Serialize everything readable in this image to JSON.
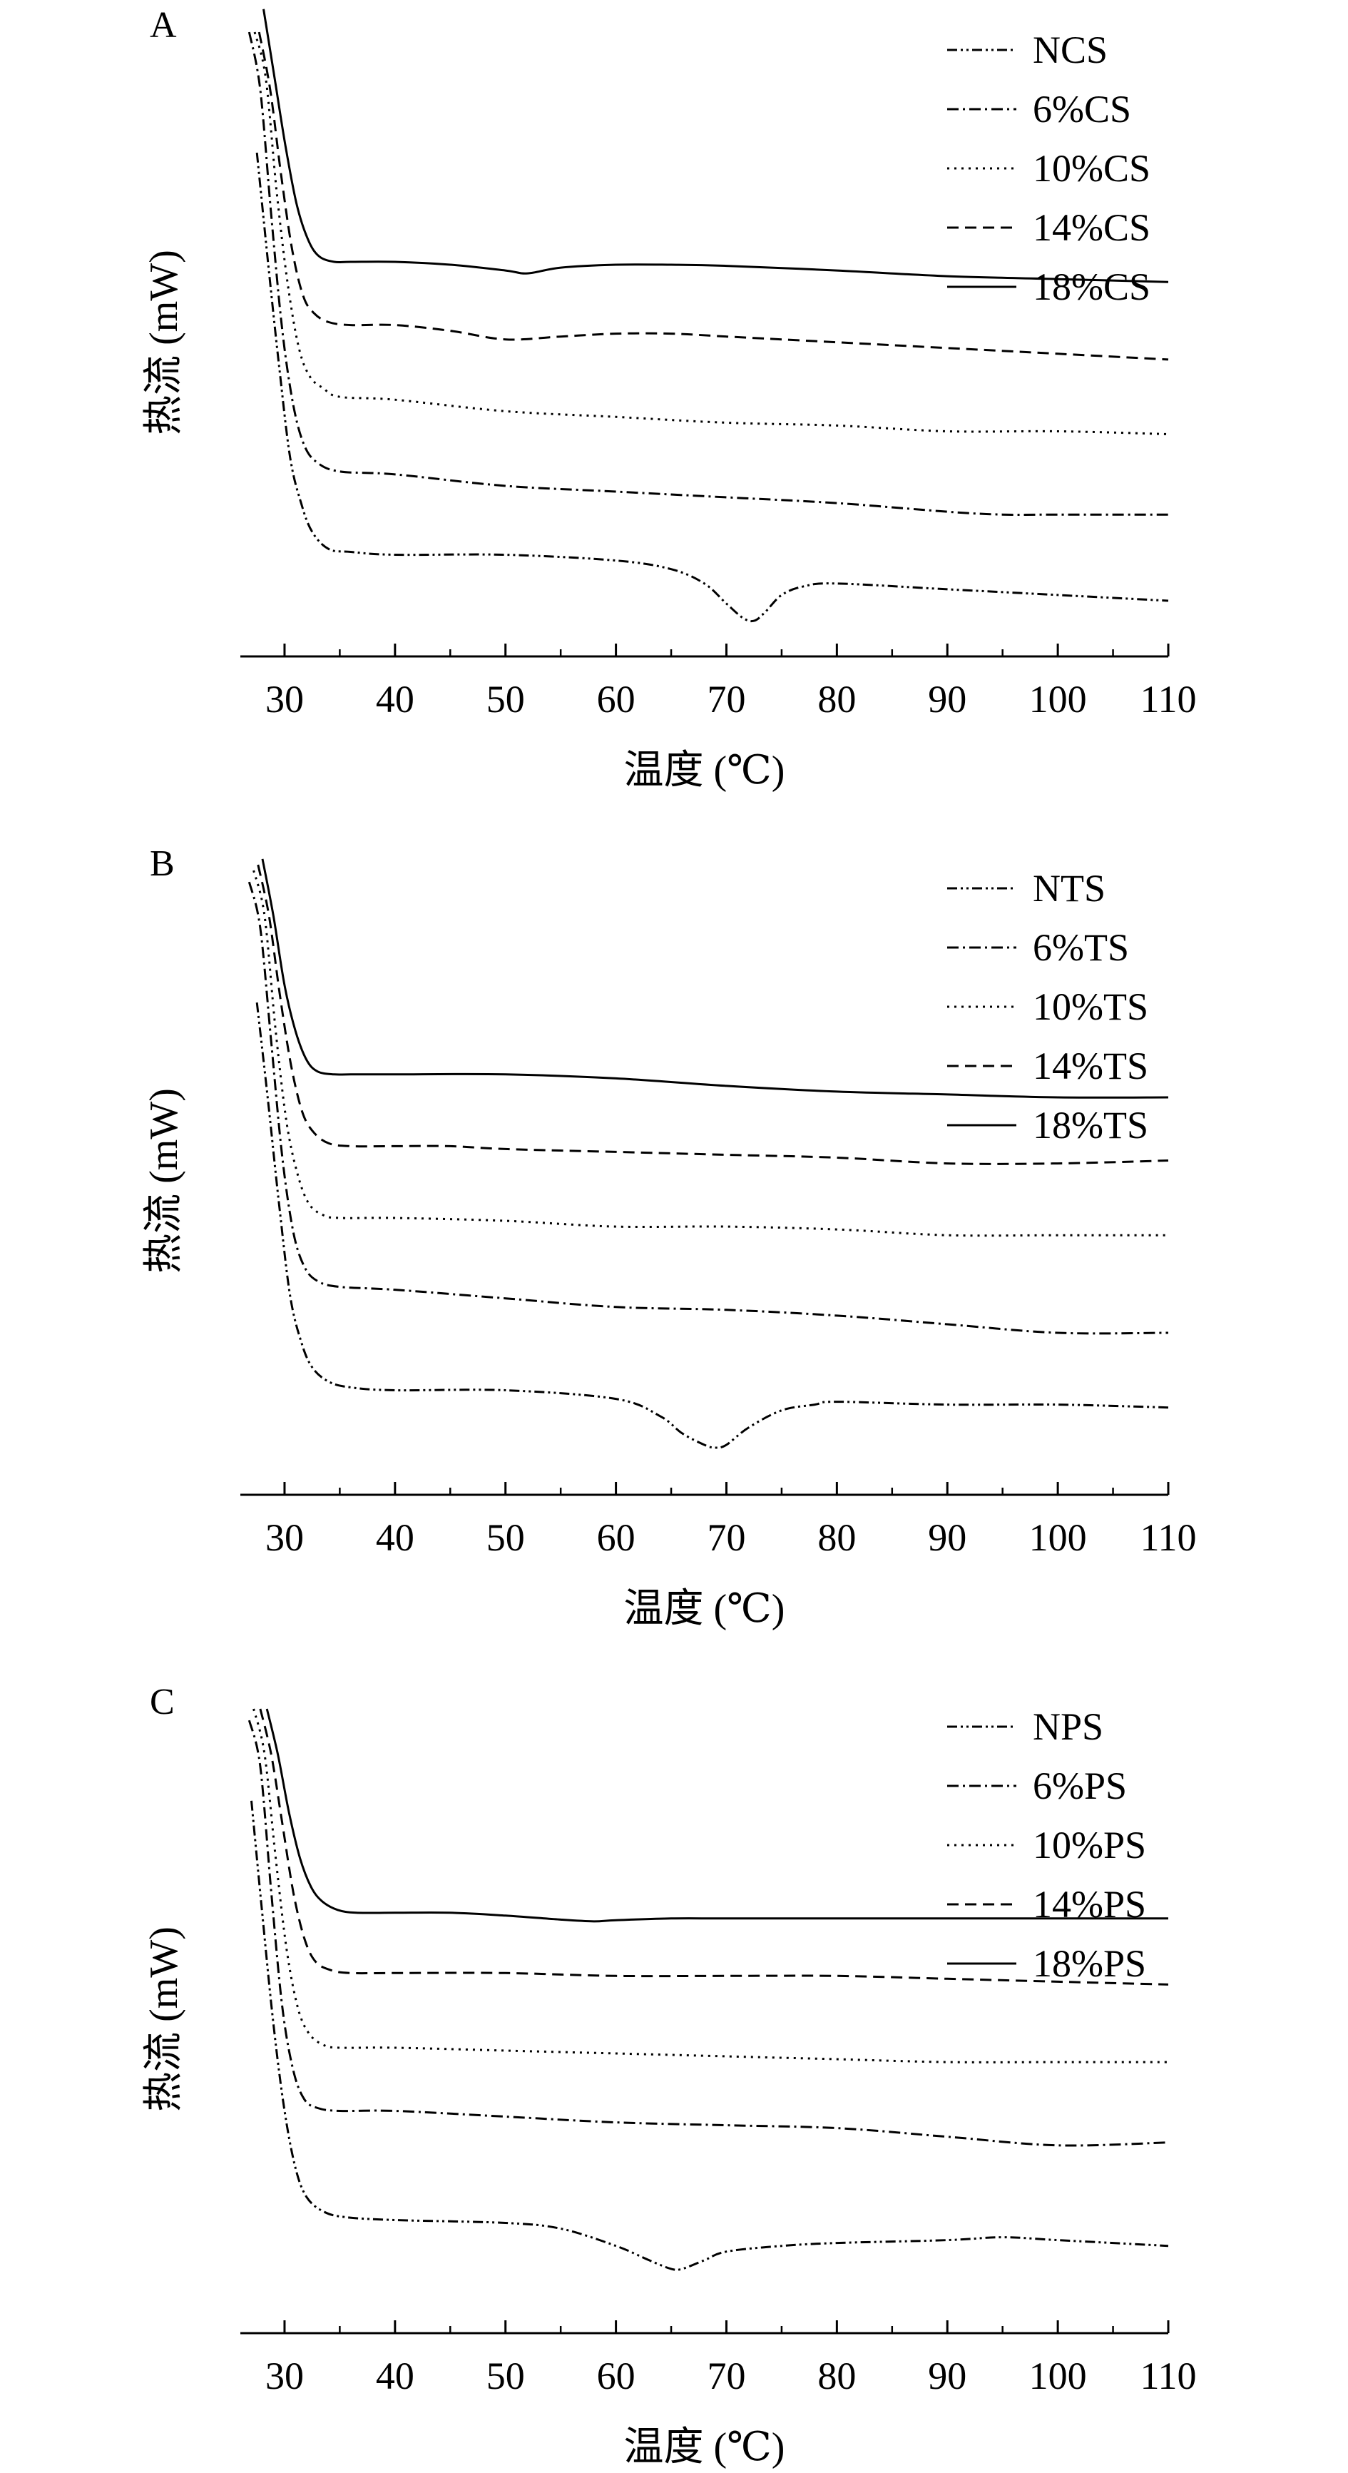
{
  "figure": {
    "panels": [
      {
        "label": "A",
        "xlabel": "温度 (℃)",
        "ylabel": "热流 (mW)",
        "xticks": [
          "30",
          "40",
          "50",
          "60",
          "70",
          "80",
          "90",
          "100",
          "110"
        ],
        "legend": [
          "NCS",
          "6%CS",
          "10%CS",
          "14%CS",
          "18%CS"
        ]
      },
      {
        "label": "B",
        "xlabel": "温度 (℃)",
        "ylabel": "热流 (mW)",
        "xticks": [
          "30",
          "40",
          "50",
          "60",
          "70",
          "80",
          "90",
          "100",
          "110"
        ],
        "legend": [
          "NTS",
          "6%TS",
          "10%TS",
          "14%TS",
          "18%TS"
        ]
      },
      {
        "label": "C",
        "xlabel": "温度 (℃)",
        "ylabel": "热流 (mW)",
        "xticks": [
          "30",
          "40",
          "50",
          "60",
          "70",
          "80",
          "90",
          "100",
          "110"
        ],
        "legend": [
          "NPS",
          "6%PS",
          "10%PS",
          "14%PS",
          "18%PS"
        ]
      }
    ]
  },
  "chart_data": [
    {
      "type": "line",
      "panel": "A",
      "xlabel": "温度 (℃)",
      "ylabel": "热流 (mW)",
      "xlim": [
        26,
        110
      ],
      "ylim": [
        0,
        100
      ],
      "xticks": [
        30,
        40,
        50,
        60,
        70,
        80,
        90,
        100,
        110
      ],
      "legend_position": "top-right",
      "grid": false,
      "series": [
        {
          "name": "NCS",
          "style": "dash-dot-dot",
          "x": [
            27.5,
            28.5,
            29.5,
            30.5,
            31.5,
            32.5,
            34,
            36,
            40,
            50,
            60,
            65,
            68,
            70,
            71.5,
            72.5,
            73.5,
            75,
            77,
            80,
            90,
            100,
            110
          ],
          "y": [
            79,
            60,
            42,
            26,
            18,
            13,
            10,
            9.5,
            9,
            9,
            8,
            6.5,
            4,
            0.5,
            -2,
            -2.5,
            -1,
            2,
            3.5,
            4,
            3,
            2,
            1
          ]
        },
        {
          "name": "6%CS",
          "style": "dash-dot",
          "x": [
            26.8,
            27.8,
            28.8,
            29.8,
            30.8,
            31.8,
            33,
            35,
            40,
            50,
            60,
            70,
            80,
            90,
            95,
            100,
            110
          ],
          "y": [
            100,
            90,
            68,
            48,
            35,
            28,
            25,
            23.5,
            23,
            21,
            20,
            19,
            18,
            16.5,
            16,
            16,
            16
          ]
        },
        {
          "name": "10%CS",
          "style": "dotted",
          "x": [
            27.3,
            28.3,
            29.3,
            30.3,
            31.3,
            32.3,
            33.5,
            35,
            40,
            50,
            60,
            70,
            80,
            90,
            100,
            110
          ],
          "y": [
            100,
            92,
            72,
            56,
            45,
            40,
            38,
            36.5,
            36,
            34,
            33,
            32,
            31.5,
            30.5,
            30.5,
            30
          ]
        },
        {
          "name": "14%CS",
          "style": "dashed",
          "x": [
            27.7,
            28.7,
            29.7,
            30.7,
            31.7,
            32.7,
            34,
            36,
            40,
            45,
            50,
            55,
            60,
            65,
            70,
            80,
            90,
            100,
            110
          ],
          "y": [
            100,
            90,
            75,
            62,
            54,
            51,
            49.5,
            49,
            49,
            48,
            46.5,
            47,
            47.5,
            47.5,
            47,
            46,
            45,
            44,
            43
          ]
        },
        {
          "name": "18%CS",
          "style": "solid",
          "x": [
            28.1,
            29.1,
            30.1,
            31.1,
            32.1,
            33.1,
            34.5,
            36,
            40,
            45,
            50,
            52,
            55,
            60,
            65,
            70,
            80,
            90,
            100,
            110
          ],
          "y": [
            104,
            92,
            80,
            70,
            64,
            61,
            60,
            60,
            60,
            59.5,
            58.5,
            58,
            59,
            59.5,
            59.5,
            59.3,
            58.5,
            57.5,
            57,
            56.5
          ]
        }
      ]
    },
    {
      "type": "line",
      "panel": "B",
      "xlabel": "温度 (℃)",
      "ylabel": "热流 (mW)",
      "xlim": [
        26,
        110
      ],
      "ylim": [
        0,
        100
      ],
      "xticks": [
        30,
        40,
        50,
        60,
        70,
        80,
        90,
        100,
        110
      ],
      "legend_position": "top-right",
      "grid": false,
      "series": [
        {
          "name": "NTS",
          "style": "dash-dot-dot",
          "x": [
            27.5,
            28.5,
            29.5,
            30.5,
            31.5,
            32.5,
            34,
            36,
            40,
            50,
            60,
            64,
            66,
            68,
            69,
            70,
            72,
            75,
            78,
            80,
            90,
            100,
            110
          ],
          "y": [
            77,
            60,
            42,
            26,
            18,
            13.5,
            11,
            10,
            9.5,
            9.5,
            8,
            5,
            2,
            0,
            -0.5,
            0,
            3,
            6,
            7,
            7.5,
            7,
            7,
            6.5
          ]
        },
        {
          "name": "6%TS",
          "style": "dash-dot",
          "x": [
            26.8,
            27.8,
            28.8,
            29.8,
            30.8,
            31.8,
            33,
            35,
            40,
            50,
            60,
            70,
            80,
            90,
            100,
            110
          ],
          "y": [
            98,
            90,
            70,
            50,
            37,
            31,
            28.5,
            27.5,
            27,
            25.5,
            24,
            23.5,
            22.5,
            21,
            19.5,
            19.5
          ]
        },
        {
          "name": "10%TS",
          "style": "dotted",
          "x": [
            27.2,
            28.2,
            29.2,
            30.2,
            31.2,
            32.2,
            33.5,
            35,
            40,
            50,
            60,
            70,
            80,
            90,
            100,
            110
          ],
          "y": [
            100,
            92,
            72,
            56,
            47,
            42,
            40,
            39.5,
            39.5,
            39,
            38,
            38,
            37.5,
            36.5,
            36.5,
            36.5
          ]
        },
        {
          "name": "14%TS",
          "style": "dashed",
          "x": [
            27.6,
            28.6,
            29.6,
            30.6,
            31.6,
            32.6,
            34,
            36,
            40,
            45,
            50,
            60,
            70,
            80,
            90,
            100,
            110
          ],
          "y": [
            101,
            92,
            78,
            66,
            58,
            54.5,
            52.5,
            52,
            52,
            52,
            51.5,
            51,
            50.5,
            50,
            49,
            49,
            49.5
          ]
        },
        {
          "name": "18%TS",
          "style": "solid",
          "x": [
            28,
            29,
            30,
            31,
            32,
            33,
            34.5,
            36,
            40,
            50,
            60,
            70,
            80,
            90,
            100,
            110
          ],
          "y": [
            102,
            92,
            80,
            72,
            67,
            65,
            64.5,
            64.5,
            64.5,
            64.5,
            63.8,
            62.5,
            61.5,
            61,
            60.5,
            60.5
          ]
        }
      ]
    },
    {
      "type": "line",
      "panel": "C",
      "xlabel": "温度 (℃)",
      "ylabel": "热流 (mW)",
      "xlim": [
        26,
        110
      ],
      "ylim": [
        0,
        100
      ],
      "xticks": [
        30,
        40,
        50,
        60,
        70,
        80,
        90,
        100,
        110
      ],
      "legend_position": "top-right",
      "grid": false,
      "series": [
        {
          "name": "NPS",
          "style": "dash-dot-dot",
          "x": [
            27,
            28,
            29,
            30,
            31,
            32,
            33.5,
            35.5,
            40,
            50,
            55,
            60,
            63,
            65,
            66,
            68,
            70,
            75,
            80,
            90,
            95,
            100,
            110
          ],
          "y": [
            84,
            64,
            45,
            30,
            20,
            15,
            12.5,
            11.5,
            11,
            10.5,
            9.5,
            6.5,
            4,
            2.5,
            2.5,
            4,
            5.5,
            6.5,
            7,
            7.5,
            8,
            7.5,
            6.5
          ]
        },
        {
          "name": "6%PS",
          "style": "dash-dot",
          "x": [
            26.8,
            27.8,
            28.8,
            29.8,
            30.8,
            31.8,
            33,
            35,
            40,
            50,
            60,
            70,
            80,
            90,
            100,
            110
          ],
          "y": [
            98,
            90,
            68,
            48,
            37,
            32,
            30.5,
            30,
            30,
            29,
            28,
            27.5,
            27,
            25.5,
            24,
            24.5
          ]
        },
        {
          "name": "10%PS",
          "style": "dotted",
          "x": [
            27.2,
            28.2,
            29.2,
            30.2,
            31.2,
            32.2,
            33.5,
            35,
            40,
            50,
            60,
            70,
            80,
            90,
            100,
            110
          ],
          "y": [
            100,
            92,
            74,
            58,
            48,
            43.5,
            41.5,
            41,
            41,
            40.5,
            40,
            39.5,
            39,
            38.5,
            38.5,
            38.5
          ]
        },
        {
          "name": "14%PS",
          "style": "dashed",
          "x": [
            27.8,
            28.8,
            29.8,
            30.8,
            31.8,
            32.8,
            34.2,
            36,
            40,
            50,
            60,
            70,
            80,
            90,
            100,
            110
          ],
          "y": [
            100,
            92,
            80,
            68,
            60,
            56,
            54.5,
            54,
            54,
            54,
            53.5,
            53.5,
            53.5,
            53,
            52.5,
            52
          ]
        },
        {
          "name": "18%PS",
          "style": "solid",
          "x": [
            28.4,
            29.4,
            30.4,
            31.4,
            32.4,
            33.4,
            34.8,
            36.5,
            40,
            45,
            50,
            55,
            58,
            60,
            65,
            70,
            80,
            90,
            100,
            110
          ],
          "y": [
            100,
            92,
            82,
            74,
            69,
            66.5,
            65,
            64.5,
            64.5,
            64.5,
            64,
            63.3,
            63,
            63.2,
            63.5,
            63.5,
            63.5,
            63.5,
            63.5,
            63.5
          ]
        }
      ]
    }
  ]
}
